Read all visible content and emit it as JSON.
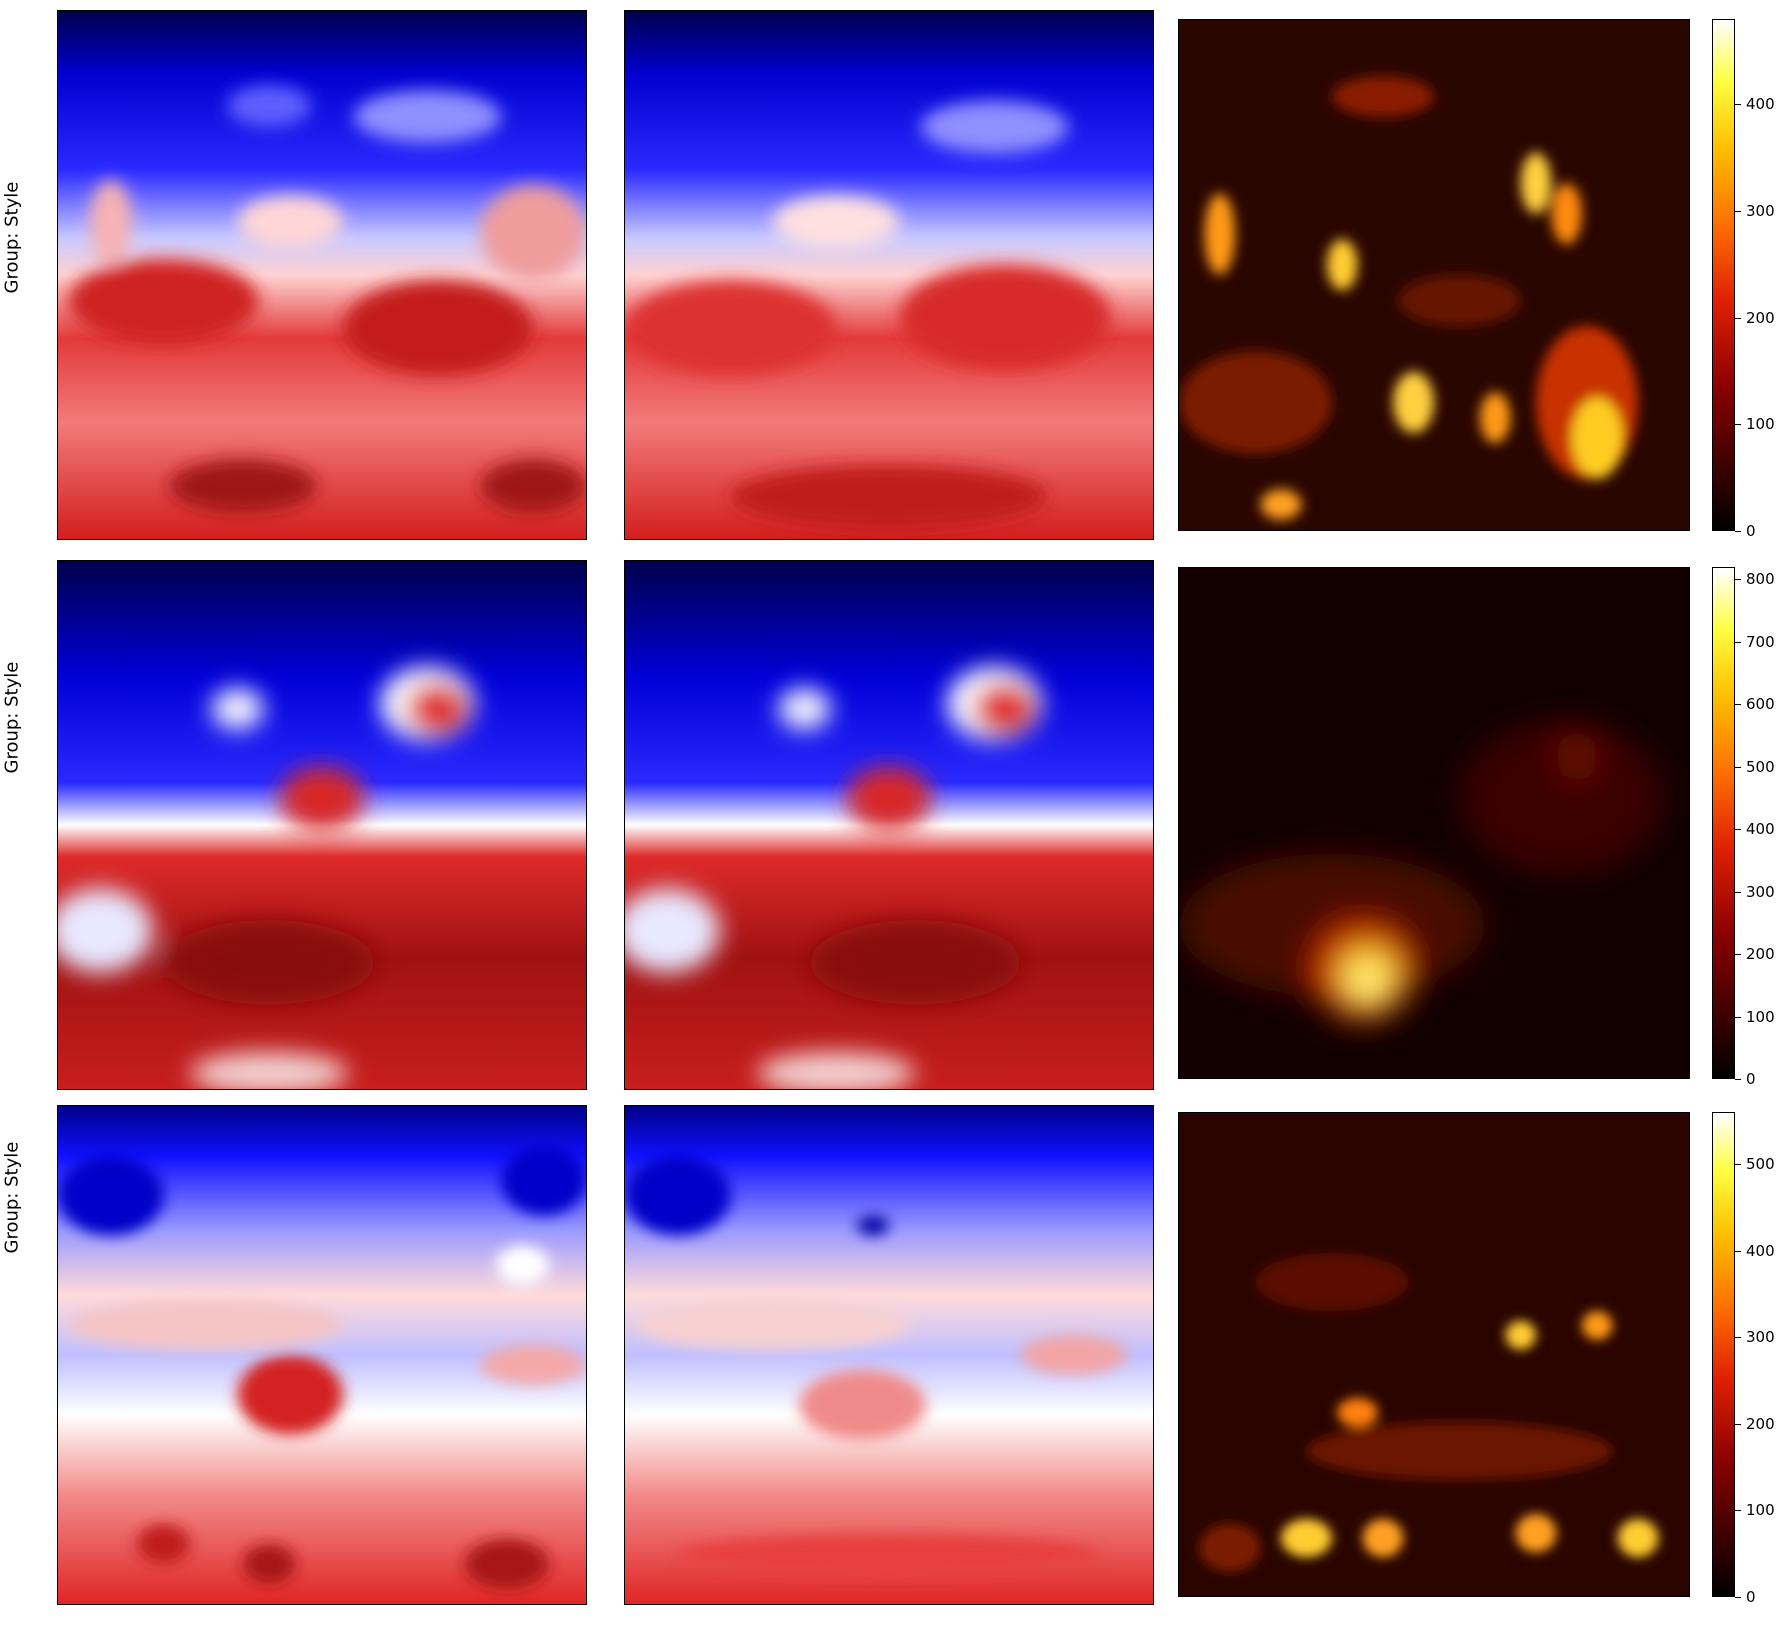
{
  "figure": {
    "rows": [
      {
        "row_label": "Group: Style",
        "colorbar_ticks": [
          "0",
          "100",
          "200",
          "300",
          "400"
        ],
        "colorbar_max": 480
      },
      {
        "row_label": "Group: Style",
        "colorbar_ticks": [
          "0",
          "100",
          "200",
          "300",
          "400",
          "500",
          "600",
          "700",
          "800"
        ],
        "colorbar_max": 820
      },
      {
        "row_label": "Group: Style",
        "colorbar_ticks": [
          "0",
          "100",
          "200",
          "300",
          "400",
          "500"
        ],
        "colorbar_max": 560
      }
    ]
  },
  "chart_data": {
    "type": "heatmap",
    "layout": "3 rows x 3 columns (field, reconstruction, error map with colorbar)",
    "field_colormap": "seismic-like (blue-white-red)",
    "error_colormap": "hot",
    "colors": {
      "blue_dark": "#00004d",
      "blue": "#0000ff",
      "white": "#ffffff",
      "red": "#e32222",
      "red_dark": "#7a0d0d"
    },
    "colorbars": [
      {
        "ticks": [
          0,
          100,
          200,
          300,
          400
        ],
        "range": [
          0,
          480
        ]
      },
      {
        "ticks": [
          0,
          100,
          200,
          300,
          400,
          500,
          600,
          700,
          800
        ],
        "range": [
          0,
          820
        ]
      },
      {
        "ticks": [
          0,
          100,
          200,
          300,
          400,
          500
        ],
        "range": [
          0,
          560
        ]
      }
    ]
  }
}
